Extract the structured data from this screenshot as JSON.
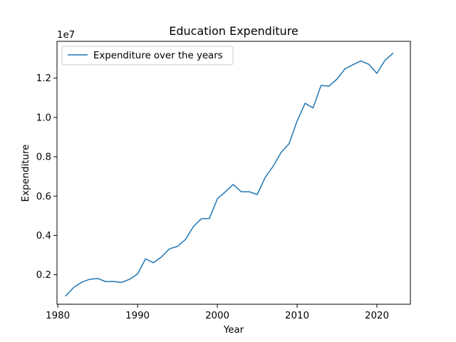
{
  "chart_data": {
    "type": "line",
    "title": "Education Expenditure",
    "xlabel": "Year",
    "ylabel": "Expenditure",
    "y_offset_label": "1e7",
    "xlim": [
      1979.9,
      2024.2
    ],
    "ylim": [
      500000,
      13870000
    ],
    "grid": false,
    "legend_position": "top-left",
    "x_ticks": [
      1980,
      1990,
      2000,
      2010,
      2020
    ],
    "y_ticks": [
      2000000,
      4000000,
      6000000,
      8000000,
      10000000,
      12000000
    ],
    "y_tick_labels": [
      "0.2",
      "0.4",
      "0.6",
      "0.8",
      "1.0",
      "1.2"
    ],
    "series": [
      {
        "name": "Expenditure over the years",
        "color": "#1f77b4",
        "x": [
          1981,
          1982,
          1983,
          1984,
          1985,
          1986,
          1987,
          1988,
          1989,
          1990,
          1991,
          1992,
          1993,
          1994,
          1995,
          1996,
          1997,
          1998,
          1999,
          2000,
          2001,
          2002,
          2003,
          2004,
          2005,
          2006,
          2007,
          2008,
          2009,
          2010,
          2011,
          2012,
          2013,
          2014,
          2015,
          2016,
          2017,
          2018,
          2019,
          2020,
          2021,
          2022
        ],
        "y": [
          930000,
          1360000,
          1620000,
          1770000,
          1810000,
          1650000,
          1660000,
          1610000,
          1770000,
          2040000,
          2810000,
          2610000,
          2910000,
          3320000,
          3440000,
          3790000,
          4450000,
          4850000,
          4860000,
          5860000,
          6220000,
          6590000,
          6220000,
          6220000,
          6080000,
          6950000,
          7520000,
          8220000,
          8670000,
          9820000,
          10720000,
          10480000,
          11630000,
          11590000,
          11950000,
          12470000,
          12680000,
          12870000,
          12700000,
          12240000,
          12900000,
          13260000
        ]
      }
    ]
  }
}
